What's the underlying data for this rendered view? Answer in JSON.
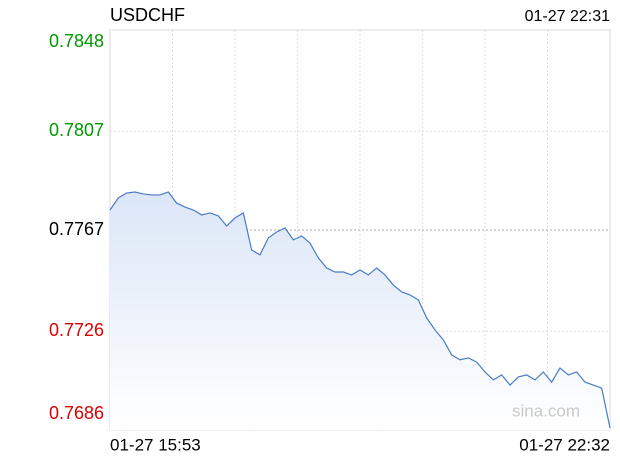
{
  "chart_data": {
    "type": "line",
    "title": "USDCHF",
    "timestamp": "01-27 22:31",
    "watermark": "sina.com",
    "categories": [
      "01-27 15:53",
      null,
      null,
      null,
      null,
      null,
      null,
      null,
      null,
      null,
      null,
      null,
      null,
      null,
      null,
      null,
      null,
      null,
      null,
      null,
      null,
      null,
      null,
      null,
      null,
      null,
      null,
      null,
      null,
      null,
      null,
      null,
      null,
      null,
      null,
      null,
      null,
      null,
      null,
      null,
      null,
      null,
      null,
      null,
      null,
      null,
      null,
      null,
      null,
      null,
      null,
      null,
      null,
      null,
      null,
      null,
      null,
      null,
      null,
      null,
      "01-27 22:32"
    ],
    "series": [
      {
        "name": "USDCHF",
        "color": "#4a7cc7",
        "values": [
          0.77751,
          0.778,
          0.7782,
          0.77824,
          0.77816,
          0.77812,
          0.77812,
          0.77824,
          0.77779,
          0.77763,
          0.77751,
          0.77731,
          0.77739,
          0.77727,
          0.77686,
          0.77719,
          0.77739,
          0.77589,
          0.77569,
          0.77638,
          0.77662,
          0.77678,
          0.7763,
          0.77646,
          0.77617,
          0.77557,
          0.77516,
          0.775,
          0.775,
          0.77488,
          0.77508,
          0.77488,
          0.77516,
          0.77488,
          0.77447,
          0.77419,
          0.77407,
          0.77387,
          0.77314,
          0.77265,
          0.77225,
          0.77164,
          0.77144,
          0.77152,
          0.77135,
          0.77095,
          0.77063,
          0.77083,
          0.77042,
          0.77075,
          0.77083,
          0.77063,
          0.77095,
          0.77054,
          0.77111,
          0.77083,
          0.77095,
          0.77054,
          0.77042,
          0.7703,
          0.76868
        ]
      }
    ],
    "ylim": [
      0.7686,
      0.7848
    ],
    "yticks": [
      0.7686,
      0.7726,
      0.7767,
      0.7807,
      0.7848
    ],
    "ytick_colors": [
      "#dd0000",
      "#dd0000",
      "#000000",
      "#009900",
      "#009900"
    ],
    "grid": true
  }
}
